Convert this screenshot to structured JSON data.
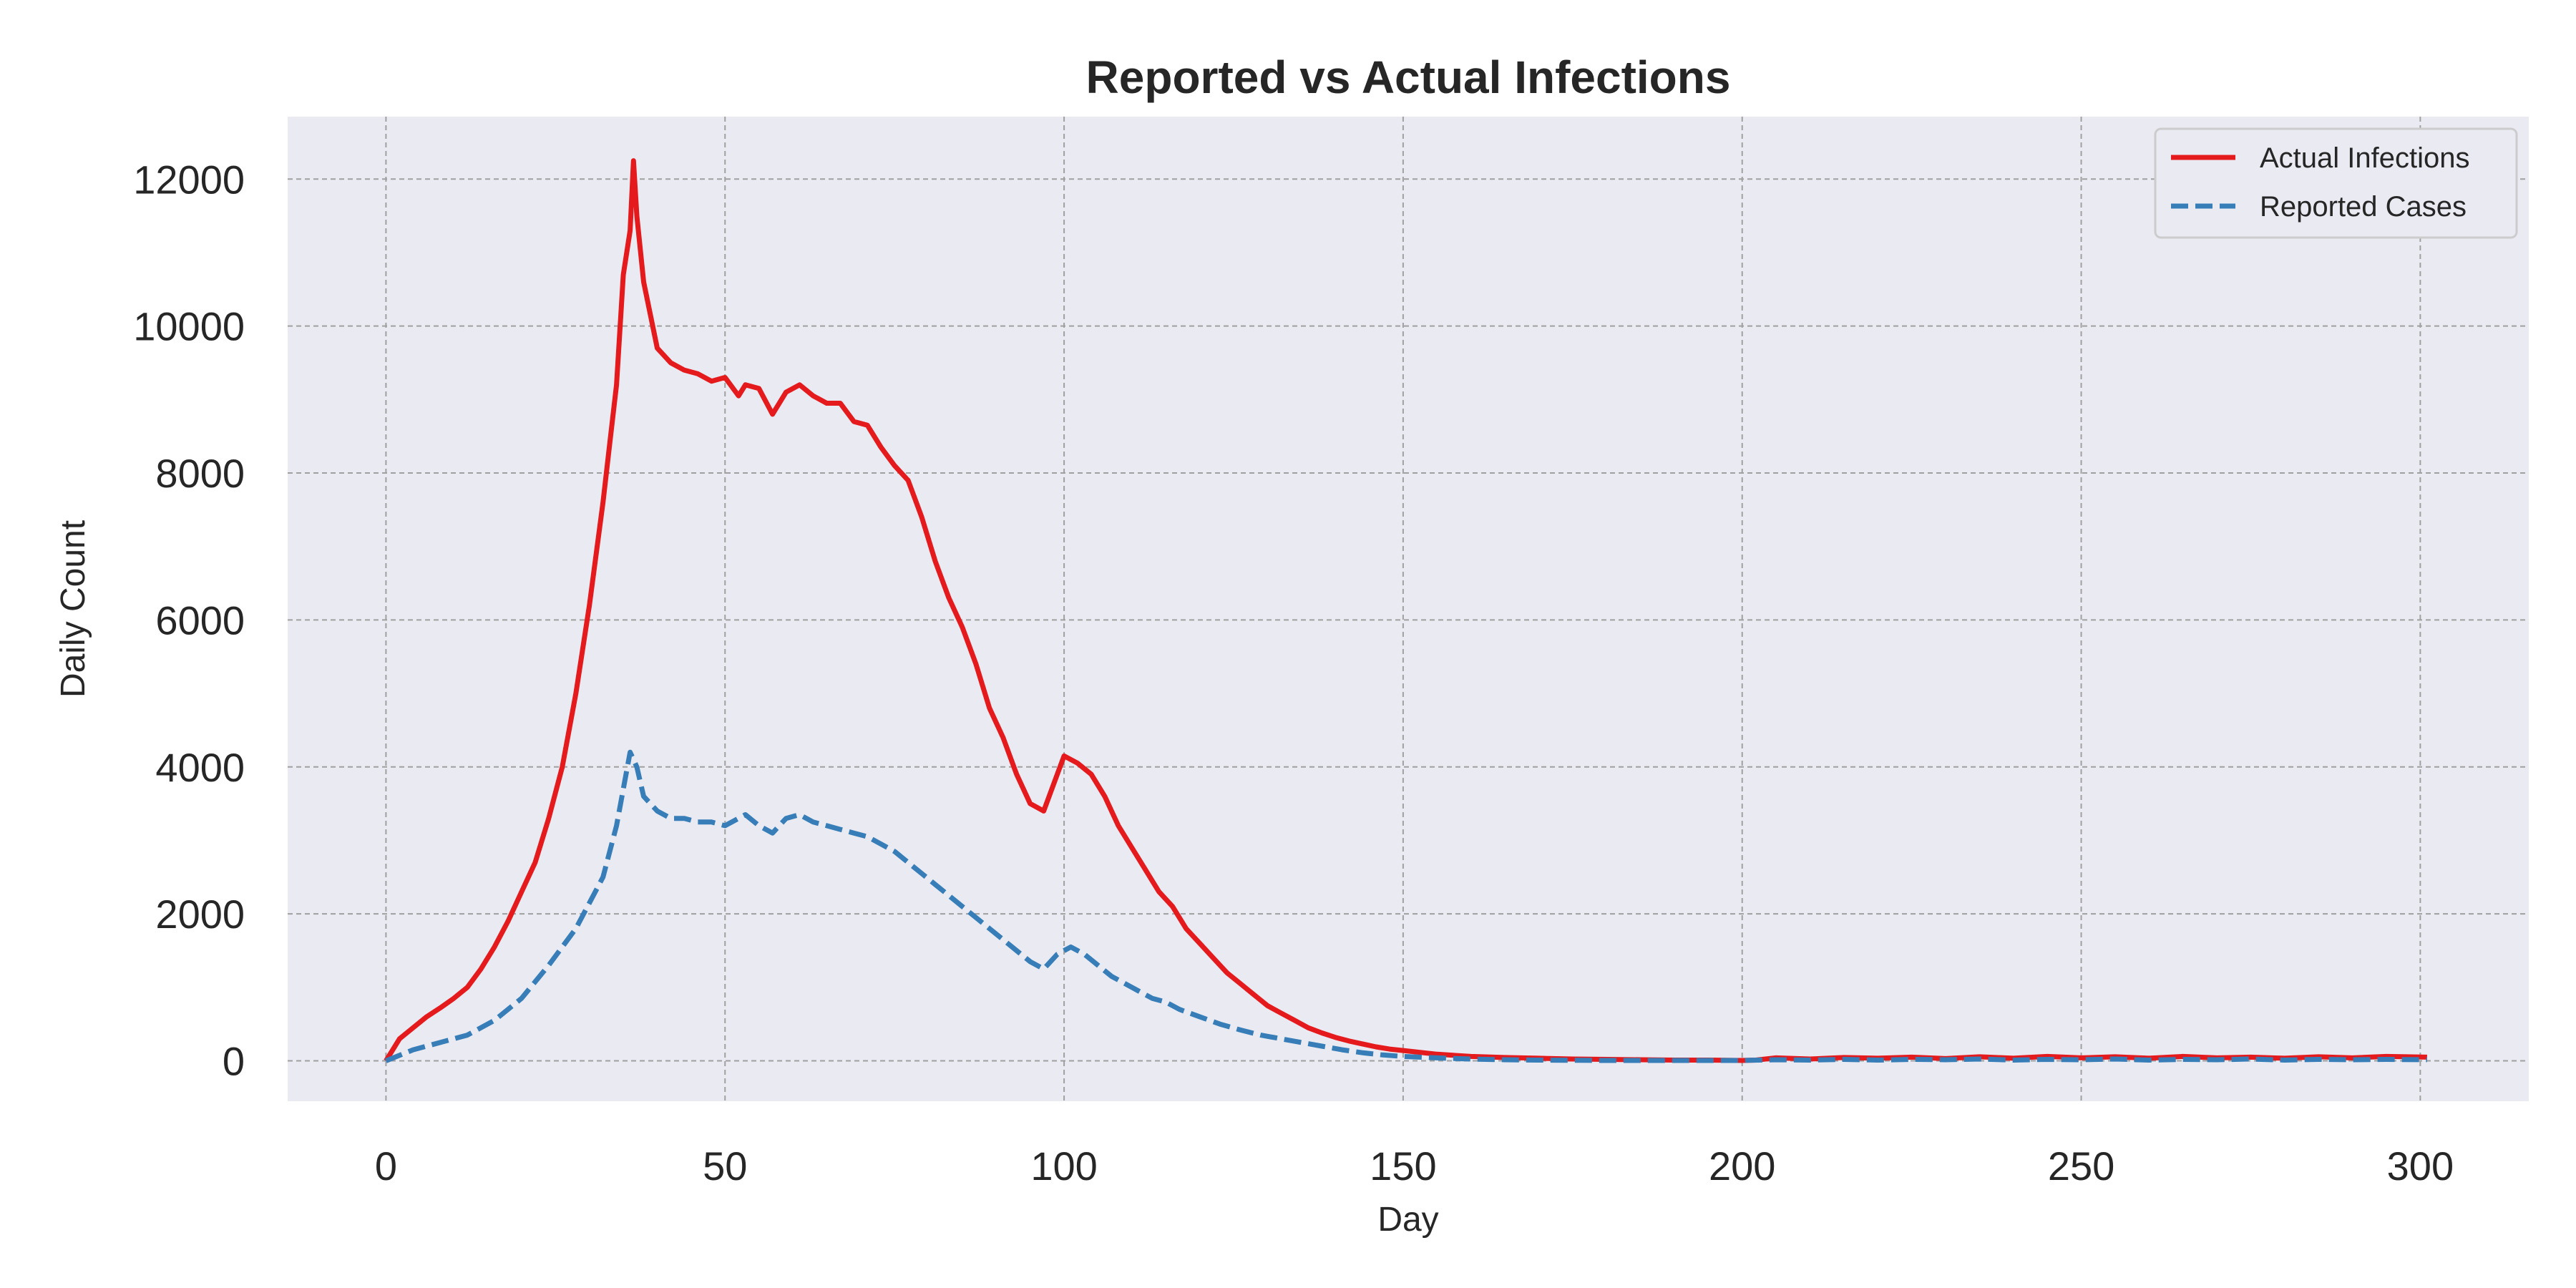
{
  "chart_data": {
    "type": "line",
    "title": "Reported vs Actual Infections",
    "xlabel": "Day",
    "ylabel": "Daily Count",
    "xlim": [
      -14.5,
      316
    ],
    "ylim": [
      -550,
      12850
    ],
    "xticks": [
      0,
      50,
      100,
      150,
      200,
      250,
      300
    ],
    "yticks": [
      0,
      2000,
      4000,
      6000,
      8000,
      10000,
      12000
    ],
    "grid": true,
    "legend_position": "upper right",
    "series": [
      {
        "name": "Actual Infections",
        "color": "#e41a1c",
        "line_style": "solid",
        "points": [
          [
            0,
            0
          ],
          [
            2,
            300
          ],
          [
            4,
            450
          ],
          [
            6,
            600
          ],
          [
            8,
            720
          ],
          [
            10,
            850
          ],
          [
            12,
            1000
          ],
          [
            14,
            1250
          ],
          [
            16,
            1550
          ],
          [
            18,
            1900
          ],
          [
            20,
            2300
          ],
          [
            22,
            2700
          ],
          [
            24,
            3300
          ],
          [
            26,
            4000
          ],
          [
            28,
            5000
          ],
          [
            30,
            6200
          ],
          [
            32,
            7600
          ],
          [
            33,
            8400
          ],
          [
            34,
            9200
          ],
          [
            35,
            10700
          ],
          [
            36,
            11300
          ],
          [
            36.5,
            12250
          ],
          [
            37,
            11500
          ],
          [
            38,
            10600
          ],
          [
            40,
            9700
          ],
          [
            42,
            9500
          ],
          [
            44,
            9400
          ],
          [
            46,
            9350
          ],
          [
            48,
            9250
          ],
          [
            50,
            9300
          ],
          [
            52,
            9050
          ],
          [
            53,
            9200
          ],
          [
            55,
            9150
          ],
          [
            57,
            8800
          ],
          [
            59,
            9100
          ],
          [
            61,
            9200
          ],
          [
            63,
            9050
          ],
          [
            65,
            8950
          ],
          [
            67,
            8950
          ],
          [
            69,
            8700
          ],
          [
            71,
            8650
          ],
          [
            73,
            8350
          ],
          [
            75,
            8100
          ],
          [
            77,
            7900
          ],
          [
            79,
            7400
          ],
          [
            81,
            6800
          ],
          [
            83,
            6300
          ],
          [
            85,
            5900
          ],
          [
            87,
            5400
          ],
          [
            89,
            4800
          ],
          [
            91,
            4400
          ],
          [
            93,
            3900
          ],
          [
            95,
            3500
          ],
          [
            97,
            3400
          ],
          [
            99,
            3900
          ],
          [
            100,
            4150
          ],
          [
            102,
            4050
          ],
          [
            104,
            3900
          ],
          [
            106,
            3600
          ],
          [
            108,
            3200
          ],
          [
            110,
            2900
          ],
          [
            112,
            2600
          ],
          [
            114,
            2300
          ],
          [
            116,
            2100
          ],
          [
            118,
            1800
          ],
          [
            120,
            1600
          ],
          [
            122,
            1400
          ],
          [
            124,
            1200
          ],
          [
            126,
            1050
          ],
          [
            128,
            900
          ],
          [
            130,
            750
          ],
          [
            132,
            650
          ],
          [
            134,
            550
          ],
          [
            136,
            450
          ],
          [
            138,
            380
          ],
          [
            140,
            320
          ],
          [
            142,
            270
          ],
          [
            144,
            230
          ],
          [
            146,
            190
          ],
          [
            148,
            160
          ],
          [
            150,
            140
          ],
          [
            155,
            90
          ],
          [
            160,
            60
          ],
          [
            165,
            45
          ],
          [
            170,
            35
          ],
          [
            175,
            25
          ],
          [
            180,
            20
          ],
          [
            185,
            15
          ],
          [
            190,
            10
          ],
          [
            195,
            10
          ],
          [
            200,
            5
          ],
          [
            202,
            10
          ],
          [
            205,
            40
          ],
          [
            210,
            25
          ],
          [
            215,
            45
          ],
          [
            220,
            35
          ],
          [
            225,
            50
          ],
          [
            230,
            30
          ],
          [
            235,
            55
          ],
          [
            240,
            35
          ],
          [
            245,
            60
          ],
          [
            250,
            40
          ],
          [
            255,
            55
          ],
          [
            260,
            35
          ],
          [
            265,
            60
          ],
          [
            270,
            40
          ],
          [
            275,
            50
          ],
          [
            280,
            35
          ],
          [
            285,
            55
          ],
          [
            290,
            40
          ],
          [
            295,
            60
          ],
          [
            301,
            50
          ]
        ]
      },
      {
        "name": "Reported Cases",
        "color": "#377eb8",
        "line_style": "dashed",
        "points": [
          [
            0,
            0
          ],
          [
            4,
            150
          ],
          [
            8,
            250
          ],
          [
            12,
            350
          ],
          [
            16,
            550
          ],
          [
            20,
            850
          ],
          [
            24,
            1300
          ],
          [
            28,
            1800
          ],
          [
            32,
            2500
          ],
          [
            34,
            3200
          ],
          [
            36,
            4200
          ],
          [
            37,
            4000
          ],
          [
            38,
            3600
          ],
          [
            40,
            3400
          ],
          [
            42,
            3300
          ],
          [
            44,
            3300
          ],
          [
            46,
            3250
          ],
          [
            48,
            3250
          ],
          [
            50,
            3200
          ],
          [
            53,
            3350
          ],
          [
            55,
            3200
          ],
          [
            57,
            3100
          ],
          [
            59,
            3300
          ],
          [
            61,
            3350
          ],
          [
            63,
            3250
          ],
          [
            65,
            3200
          ],
          [
            67,
            3150
          ],
          [
            69,
            3100
          ],
          [
            71,
            3050
          ],
          [
            73,
            2950
          ],
          [
            75,
            2850
          ],
          [
            77,
            2700
          ],
          [
            79,
            2550
          ],
          [
            81,
            2400
          ],
          [
            83,
            2250
          ],
          [
            85,
            2100
          ],
          [
            87,
            1950
          ],
          [
            89,
            1800
          ],
          [
            91,
            1650
          ],
          [
            93,
            1500
          ],
          [
            95,
            1350
          ],
          [
            97,
            1250
          ],
          [
            99,
            1450
          ],
          [
            101,
            1550
          ],
          [
            103,
            1450
          ],
          [
            105,
            1300
          ],
          [
            107,
            1150
          ],
          [
            109,
            1050
          ],
          [
            111,
            950
          ],
          [
            113,
            850
          ],
          [
            115,
            800
          ],
          [
            117,
            700
          ],
          [
            120,
            600
          ],
          [
            123,
            500
          ],
          [
            126,
            420
          ],
          [
            129,
            350
          ],
          [
            132,
            300
          ],
          [
            135,
            250
          ],
          [
            138,
            200
          ],
          [
            141,
            150
          ],
          [
            144,
            110
          ],
          [
            147,
            80
          ],
          [
            150,
            60
          ],
          [
            155,
            40
          ],
          [
            160,
            25
          ],
          [
            165,
            15
          ],
          [
            170,
            10
          ],
          [
            180,
            5
          ],
          [
            190,
            5
          ],
          [
            200,
            5
          ],
          [
            205,
            15
          ],
          [
            210,
            10
          ],
          [
            215,
            20
          ],
          [
            220,
            10
          ],
          [
            225,
            20
          ],
          [
            230,
            15
          ],
          [
            235,
            25
          ],
          [
            240,
            10
          ],
          [
            245,
            20
          ],
          [
            250,
            15
          ],
          [
            255,
            25
          ],
          [
            260,
            10
          ],
          [
            265,
            20
          ],
          [
            270,
            15
          ],
          [
            275,
            25
          ],
          [
            280,
            10
          ],
          [
            285,
            20
          ],
          [
            290,
            15
          ],
          [
            295,
            20
          ],
          [
            301,
            15
          ]
        ]
      }
    ]
  }
}
